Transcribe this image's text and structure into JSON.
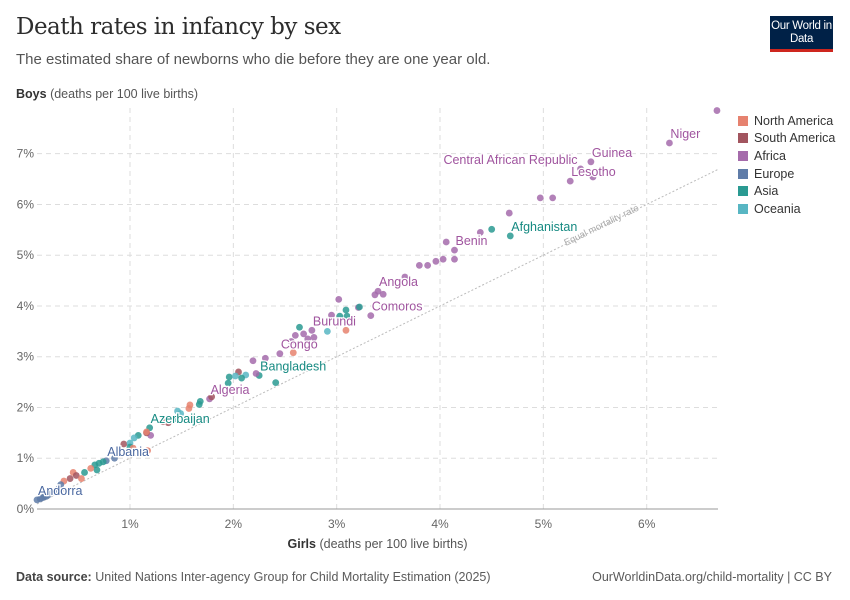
{
  "header": {
    "title": "Death rates in infancy by sex",
    "subtitle": "The estimated share of newborns who die before they are one year old.",
    "logo_text": "Our World in Data"
  },
  "footer": {
    "source_label": "Data source:",
    "source_text": "United Nations Inter-agency Group for Child Mortality Estimation (2025)",
    "link": "OurWorldinData.org/child-mortality | CC BY"
  },
  "chart_data": {
    "type": "scatter",
    "title": "Death rates in infancy by sex",
    "xlabel_bold": "Girls",
    "xlabel": "(deaths per 100 live births)",
    "ylabel_bold": "Boys",
    "ylabel": "(deaths per 100 live births)",
    "xlim": [
      0.1,
      6.69
    ],
    "ylim": [
      0,
      7.9
    ],
    "x_ticks": [
      {
        "v": 1,
        "label": "1%"
      },
      {
        "v": 2,
        "label": "2%"
      },
      {
        "v": 3,
        "label": "3%"
      },
      {
        "v": 4,
        "label": "4%"
      },
      {
        "v": 5,
        "label": "5%"
      },
      {
        "v": 6,
        "label": "6%"
      }
    ],
    "y_ticks": [
      {
        "v": 0,
        "label": "0%"
      },
      {
        "v": 1,
        "label": "1%"
      },
      {
        "v": 2,
        "label": "2%"
      },
      {
        "v": 3,
        "label": "3%"
      },
      {
        "v": 4,
        "label": "4%"
      },
      {
        "v": 5,
        "label": "5%"
      },
      {
        "v": 6,
        "label": "6%"
      },
      {
        "v": 7,
        "label": "7%"
      }
    ],
    "grid": true,
    "reference_line": {
      "label": "Equal mortality rate",
      "slope": 1
    },
    "legend_position": "right",
    "legend": [
      {
        "name": "North America",
        "color": "#e6826f"
      },
      {
        "name": "South America",
        "color": "#a2555f"
      },
      {
        "name": "Africa",
        "color": "#a56bab"
      },
      {
        "name": "Europe",
        "color": "#5f7ca8"
      },
      {
        "name": "Asia",
        "color": "#2a9a92"
      },
      {
        "name": "Oceania",
        "color": "#58b6c3"
      }
    ],
    "label_colors": {
      "Africa": "#a0559f",
      "Asia": "#168a82",
      "Europe": "#4a68a0"
    },
    "points": [
      {
        "x": 6.68,
        "y": 7.85,
        "r": "Africa"
      },
      {
        "x": 6.22,
        "y": 7.21,
        "r": "Africa",
        "label": "Niger"
      },
      {
        "x": 5.46,
        "y": 6.84,
        "r": "Africa",
        "label": "Guinea"
      },
      {
        "x": 5.36,
        "y": 6.7,
        "r": "Africa",
        "label": "Central African Republic",
        "anchor": "end"
      },
      {
        "x": 5.48,
        "y": 6.54,
        "r": "Africa"
      },
      {
        "x": 5.26,
        "y": 6.46,
        "r": "Africa",
        "label": "Lesotho"
      },
      {
        "x": 5.09,
        "y": 6.13,
        "r": "Africa"
      },
      {
        "x": 4.97,
        "y": 6.13,
        "r": "Africa"
      },
      {
        "x": 4.67,
        "y": 5.83,
        "r": "Africa"
      },
      {
        "x": 4.68,
        "y": 5.38,
        "r": "Asia",
        "label": "Afghanistan"
      },
      {
        "x": 4.5,
        "y": 5.51,
        "r": "Asia"
      },
      {
        "x": 4.39,
        "y": 5.45,
        "r": "Africa"
      },
      {
        "x": 4.14,
        "y": 5.1,
        "r": "Africa",
        "label": "Benin"
      },
      {
        "x": 4.06,
        "y": 5.26,
        "r": "Africa"
      },
      {
        "x": 4.14,
        "y": 4.92,
        "r": "Africa"
      },
      {
        "x": 4.03,
        "y": 4.92,
        "r": "Africa"
      },
      {
        "x": 3.96,
        "y": 4.88,
        "r": "Africa"
      },
      {
        "x": 3.88,
        "y": 4.8,
        "r": "Africa"
      },
      {
        "x": 3.8,
        "y": 4.8,
        "r": "Africa"
      },
      {
        "x": 3.66,
        "y": 4.57,
        "r": "Africa"
      },
      {
        "x": 3.4,
        "y": 4.29,
        "r": "Africa",
        "label": "Angola"
      },
      {
        "x": 3.45,
        "y": 4.23,
        "r": "Africa"
      },
      {
        "x": 3.37,
        "y": 4.22,
        "r": "Africa"
      },
      {
        "x": 3.33,
        "y": 3.81,
        "r": "Africa",
        "label": "Comoros"
      },
      {
        "x": 3.02,
        "y": 4.13,
        "r": "Africa"
      },
      {
        "x": 3.09,
        "y": 3.92,
        "r": "Asia"
      },
      {
        "x": 3.1,
        "y": 3.8,
        "r": "Asia"
      },
      {
        "x": 3.21,
        "y": 3.97,
        "r": "Africa"
      },
      {
        "x": 3.22,
        "y": 3.98,
        "r": "Asia"
      },
      {
        "x": 2.95,
        "y": 3.82,
        "r": "Africa"
      },
      {
        "x": 3.03,
        "y": 3.8,
        "r": "Asia"
      },
      {
        "x": 2.76,
        "y": 3.52,
        "r": "Africa",
        "label": "Burundi"
      },
      {
        "x": 2.64,
        "y": 3.58,
        "r": "Asia"
      },
      {
        "x": 2.91,
        "y": 3.5,
        "r": "Oceania"
      },
      {
        "x": 3.09,
        "y": 3.52,
        "r": "North America"
      },
      {
        "x": 2.6,
        "y": 3.42,
        "r": "Africa"
      },
      {
        "x": 2.68,
        "y": 3.45,
        "r": "Africa"
      },
      {
        "x": 2.72,
        "y": 3.35,
        "r": "Africa"
      },
      {
        "x": 2.78,
        "y": 3.38,
        "r": "Africa"
      },
      {
        "x": 2.56,
        "y": 3.3,
        "r": "Africa"
      },
      {
        "x": 2.45,
        "y": 3.06,
        "r": "Africa",
        "label": "Congo"
      },
      {
        "x": 2.58,
        "y": 3.08,
        "r": "North America"
      },
      {
        "x": 2.19,
        "y": 2.92,
        "r": "Africa"
      },
      {
        "x": 2.31,
        "y": 2.97,
        "r": "Africa"
      },
      {
        "x": 2.25,
        "y": 2.63,
        "r": "Asia",
        "label": "Bangladesh"
      },
      {
        "x": 2.41,
        "y": 2.49,
        "r": "Asia"
      },
      {
        "x": 2.22,
        "y": 2.67,
        "r": "Africa"
      },
      {
        "x": 2.05,
        "y": 2.7,
        "r": "South America"
      },
      {
        "x": 1.96,
        "y": 2.6,
        "r": "Asia"
      },
      {
        "x": 2.02,
        "y": 2.62,
        "r": "Oceania"
      },
      {
        "x": 2.12,
        "y": 2.64,
        "r": "Oceania"
      },
      {
        "x": 2.08,
        "y": 2.58,
        "r": "Asia"
      },
      {
        "x": 1.95,
        "y": 2.48,
        "r": "Asia"
      },
      {
        "x": 1.77,
        "y": 2.17,
        "r": "Africa",
        "label": "Algeria"
      },
      {
        "x": 1.79,
        "y": 2.21,
        "r": "South America"
      },
      {
        "x": 1.58,
        "y": 2.05,
        "r": "North America"
      },
      {
        "x": 1.57,
        "y": 1.98,
        "r": "North America"
      },
      {
        "x": 1.68,
        "y": 2.12,
        "r": "Asia"
      },
      {
        "x": 1.67,
        "y": 2.06,
        "r": "Asia"
      },
      {
        "x": 1.46,
        "y": 1.93,
        "r": "Oceania"
      },
      {
        "x": 1.49,
        "y": 1.88,
        "r": "Oceania"
      },
      {
        "x": 1.44,
        "y": 1.78,
        "r": "Asia"
      },
      {
        "x": 1.32,
        "y": 1.72,
        "r": "South America"
      },
      {
        "x": 1.37,
        "y": 1.7,
        "r": "South America"
      },
      {
        "x": 1.19,
        "y": 1.6,
        "r": "Asia",
        "label": "Azerbaijan"
      },
      {
        "x": 1.2,
        "y": 1.45,
        "r": "Africa"
      },
      {
        "x": 1.16,
        "y": 1.5,
        "r": "South America"
      },
      {
        "x": 1.16,
        "y": 1.52,
        "r": "North America"
      },
      {
        "x": 1.08,
        "y": 1.45,
        "r": "Asia"
      },
      {
        "x": 1.04,
        "y": 1.4,
        "r": "Oceania"
      },
      {
        "x": 0.94,
        "y": 1.28,
        "r": "South America"
      },
      {
        "x": 1.0,
        "y": 1.3,
        "r": "Oceania"
      },
      {
        "x": 1.0,
        "y": 1.22,
        "r": "Asia"
      },
      {
        "x": 1.03,
        "y": 1.2,
        "r": "North America"
      },
      {
        "x": 1.17,
        "y": 1.15,
        "r": "North America"
      },
      {
        "x": 0.77,
        "y": 0.95,
        "r": "Europe",
        "label": "Albania"
      },
      {
        "x": 0.66,
        "y": 0.87,
        "r": "Asia"
      },
      {
        "x": 0.7,
        "y": 0.9,
        "r": "Asia"
      },
      {
        "x": 0.74,
        "y": 0.93,
        "r": "Asia"
      },
      {
        "x": 0.68,
        "y": 0.77,
        "r": "Asia"
      },
      {
        "x": 0.62,
        "y": 0.8,
        "r": "North America"
      },
      {
        "x": 0.56,
        "y": 0.72,
        "r": "Asia"
      },
      {
        "x": 0.85,
        "y": 1.0,
        "r": "Europe"
      },
      {
        "x": 0.45,
        "y": 0.72,
        "r": "North America"
      },
      {
        "x": 0.42,
        "y": 0.6,
        "r": "South America"
      },
      {
        "x": 0.48,
        "y": 0.66,
        "r": "South America"
      },
      {
        "x": 0.53,
        "y": 0.6,
        "r": "North America"
      },
      {
        "x": 0.36,
        "y": 0.55,
        "r": "North America"
      },
      {
        "x": 0.33,
        "y": 0.48,
        "r": "Europe"
      },
      {
        "x": 0.1,
        "y": 0.18,
        "r": "Europe",
        "label": "Andorra"
      },
      {
        "x": 0.13,
        "y": 0.2,
        "r": "Europe"
      },
      {
        "x": 0.17,
        "y": 0.24,
        "r": "Europe"
      },
      {
        "x": 0.21,
        "y": 0.28,
        "r": "Europe"
      },
      {
        "x": 0.25,
        "y": 0.32,
        "r": "Europe"
      },
      {
        "x": 0.28,
        "y": 0.36,
        "r": "Europe"
      },
      {
        "x": 0.31,
        "y": 0.4,
        "r": "Europe"
      },
      {
        "x": 0.15,
        "y": 0.22,
        "r": "Europe"
      },
      {
        "x": 0.19,
        "y": 0.25,
        "r": "Europe"
      }
    ]
  }
}
